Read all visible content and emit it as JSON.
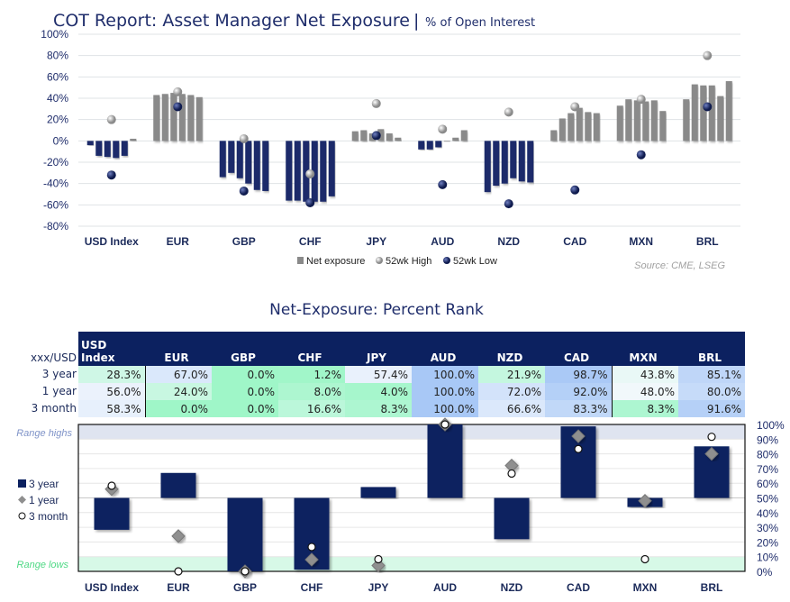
{
  "chart_data": [
    {
      "type": "bar",
      "title": "COT Report: Asset Manager Net Exposure",
      "subtitle": "% of Open Interest",
      "categories": [
        "USD Index",
        "EUR",
        "GBP",
        "CHF",
        "JPY",
        "AUD",
        "NZD",
        "CAD",
        "MXN",
        "BRL"
      ],
      "series": [
        {
          "name": "Net exposure",
          "values": [
            [
              -4,
              -14,
              -15,
              -16,
              -14,
              2
            ],
            [
              43,
              44,
              45,
              44,
              43,
              41
            ],
            [
              -34,
              -30,
              -35,
              -40,
              -46,
              -47
            ],
            [
              -56,
              -56,
              -57,
              -57,
              -57,
              -52
            ],
            [
              9,
              10,
              7,
              11,
              7,
              3
            ],
            [
              -8,
              -8,
              -6,
              0,
              3,
              10
            ],
            [
              -48,
              -42,
              -40,
              -35,
              -38,
              -39
            ],
            [
              10,
              21,
              26,
              31,
              27,
              26
            ],
            [
              33,
              39,
              38,
              37,
              38,
              28
            ],
            [
              39,
              53,
              52,
              52,
              42,
              56
            ]
          ]
        },
        {
          "name": "52wk High",
          "values": [
            20,
            46,
            2,
            -31,
            35,
            11,
            27,
            32,
            39,
            80
          ]
        },
        {
          "name": "52wk Low",
          "values": [
            -32,
            32,
            -47,
            -58,
            5,
            -41,
            -59,
            -46,
            -13,
            32
          ]
        }
      ],
      "ylim": [
        -80,
        100
      ],
      "yticks": [
        "100%",
        "80%",
        "60%",
        "40%",
        "20%",
        "0%",
        "-20%",
        "-40%",
        "-60%",
        "-80%"
      ],
      "grid": true,
      "legend": "bottom",
      "source": "Source: CME, LSEG",
      "colors": {
        "positive": "#8a8a8a",
        "negative": "#1b2a6b",
        "high": "#b5b5b5",
        "low": "#1b2a6b"
      }
    },
    {
      "type": "bar",
      "title": "Net-Exposure: Percent Rank",
      "categories": [
        "USD Index",
        "EUR",
        "GBP",
        "CHF",
        "JPY",
        "AUD",
        "NZD",
        "CAD",
        "MXN",
        "BRL"
      ],
      "series": [
        {
          "name": "3 year",
          "values": [
            28.3,
            67.0,
            0.0,
            1.2,
            57.4,
            100.0,
            21.9,
            98.7,
            43.8,
            85.1
          ]
        },
        {
          "name": "1 year",
          "values": [
            56.0,
            24.0,
            0.0,
            8.0,
            4.0,
            100.0,
            72.0,
            92.0,
            48.0,
            80.0
          ]
        },
        {
          "name": "3 month",
          "values": [
            58.3,
            0.0,
            0.0,
            16.6,
            8.3,
            100.0,
            66.6,
            83.3,
            8.3,
            91.6
          ]
        }
      ],
      "ylim": [
        0,
        100
      ],
      "yticks": [
        "100%",
        "90%",
        "80%",
        "70%",
        "60%",
        "50%",
        "40%",
        "30%",
        "20%",
        "10%",
        "0%"
      ],
      "bands": {
        "high_label": "Range highs",
        "low_label": "Range lows"
      },
      "legend": "left",
      "colors": {
        "3 year": "#0c2160",
        "1 year": "#8f8f8f",
        "3 month": "#ffffff"
      }
    }
  ],
  "table": {
    "corner": "xxx/USD",
    "columns": [
      "USD Index",
      "EUR",
      "GBP",
      "CHF",
      "JPY",
      "AUD",
      "NZD",
      "CAD",
      "MXN",
      "BRL"
    ],
    "rows": [
      {
        "label": "3 year",
        "cells": [
          "28.3%",
          "67.0%",
          "0.0%",
          "1.2%",
          "57.4%",
          "100.0%",
          "21.9%",
          "98.7%",
          "43.8%",
          "85.1%"
        ]
      },
      {
        "label": "1 year",
        "cells": [
          "56.0%",
          "24.0%",
          "0.0%",
          "8.0%",
          "4.0%",
          "100.0%",
          "72.0%",
          "92.0%",
          "48.0%",
          "80.0%"
        ]
      },
      {
        "label": "3 month",
        "cells": [
          "58.3%",
          "0.0%",
          "0.0%",
          "16.6%",
          "8.3%",
          "100.0%",
          "66.6%",
          "83.3%",
          "8.3%",
          "91.6%"
        ]
      }
    ]
  }
}
